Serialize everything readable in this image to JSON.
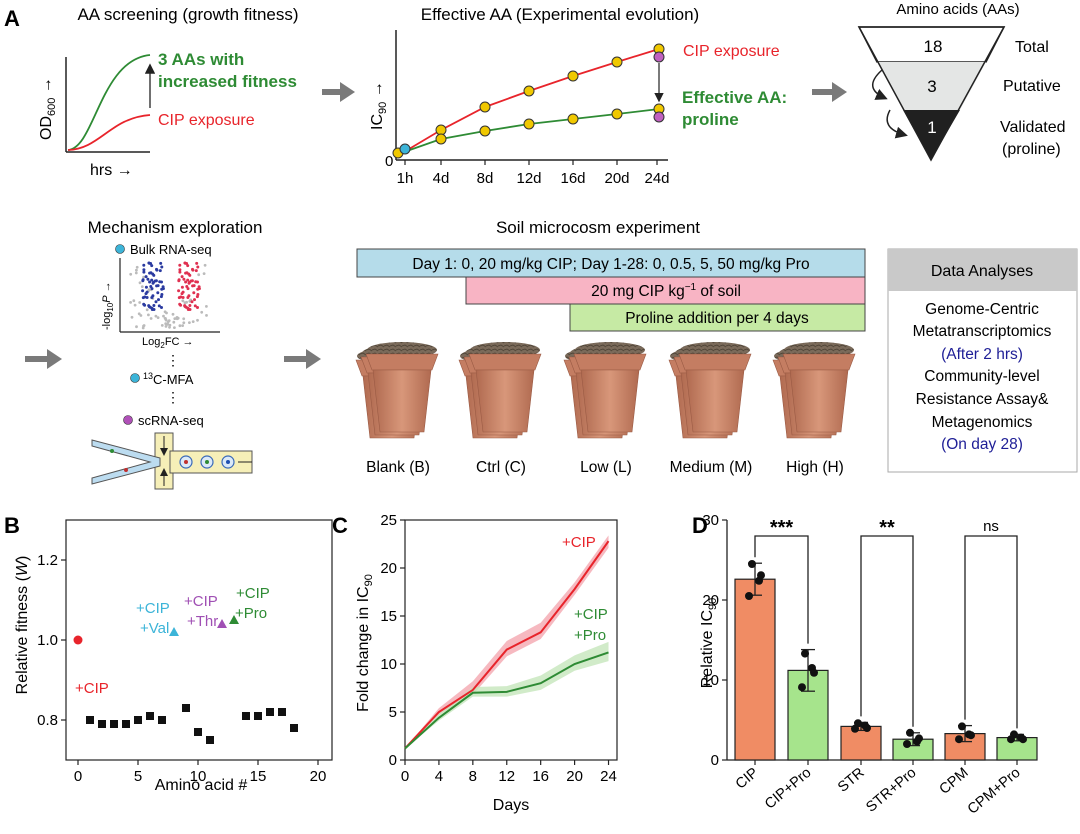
{
  "panel_labels": {
    "a": "A",
    "b": "B",
    "c": "C",
    "d": "D"
  },
  "panelA": {
    "screen_title": "AA screening (growth fitness)",
    "screen_ylabel_base": "OD",
    "screen_ylabel_sub": "600",
    "screen_xlabel": "hrs →",
    "screen_annot_line1": "3 AAs with",
    "screen_annot_line2": "increased fitness",
    "screen_cip_label": "CIP exposure",
    "evo_title": "Effective AA (Experimental evolution)",
    "evo_ylabel_base": "IC",
    "evo_ylabel_sub": "90",
    "evo_zero": "0",
    "evo_ticks": [
      "1h",
      "4d",
      "8d",
      "12d",
      "16d",
      "20d",
      "24d"
    ],
    "evo_cip_label": "CIP exposure",
    "evo_pro_line1": "Effective AA:",
    "evo_pro_line2": "proline",
    "funnel_title": "Amino acids (AAs)",
    "funnel_levels": [
      {
        "value": "18",
        "label": "Total"
      },
      {
        "value": "3",
        "label": "Putative"
      },
      {
        "value": "1",
        "label": "Validated"
      }
    ],
    "funnel_validated_note": "(proline)"
  },
  "mechanism": {
    "title": "Mechanism exploration",
    "bulk": "Bulk RNA-seq",
    "volcano_y_base": "-log",
    "volcano_y_sub": "10",
    "volcano_y_p": "P",
    "volcano_x_base": "Log",
    "volcano_x_sub": "2",
    "volcano_x_rest": "FC →",
    "dots": "⋮",
    "mfa_sup": "13",
    "mfa": "C-MFA",
    "scrna": "scRNA-seq"
  },
  "soil": {
    "title": "Soil microcosm experiment",
    "bar1": "Day 1: 0, 20 mg/kg CIP; Day 1-28: 0, 0.5, 5, 50 mg/kg Pro",
    "bar2_a": "20 mg CIP kg",
    "bar2_sup": "−1",
    "bar2_b": " of soil",
    "bar3": "Proline addition per 4 days",
    "pots": [
      "Blank (B)",
      "Ctrl (C)",
      "Low (L)",
      "Medium (M)",
      "High (H)"
    ]
  },
  "analyses": {
    "title": "Data Analyses",
    "lines": [
      "Genome-Centric",
      "Metatranscriptomics",
      "(After 2 hrs)",
      "Community-level",
      "Resistance Assay&",
      "Metagenomics",
      "(On day 28)"
    ]
  },
  "colors": {
    "red": "#e8242b",
    "green": "#2e8b34",
    "cyan": "#3cb4d8",
    "purple": "#a050b4",
    "orange": "#f08c64",
    "lightgreen": "#a6e48c",
    "blue": "#1e1e96"
  },
  "chart_data": [
    {
      "type": "scatter",
      "title": "",
      "xlabel": "Amino acid #",
      "ylabel": "Relative fitness (W)",
      "xlim": [
        -1,
        20
      ],
      "ylim": [
        0.7,
        1.3
      ],
      "xticks": [
        0,
        5,
        10,
        15,
        20
      ],
      "yticks": [
        0.8,
        1.0,
        1.2
      ],
      "series": [
        {
          "name": "Amino acids",
          "marker": "square",
          "x": [
            1,
            2,
            3,
            4,
            5,
            6,
            7,
            9,
            10,
            11,
            14,
            15,
            16,
            17,
            18
          ],
          "y": [
            0.8,
            0.79,
            0.79,
            0.79,
            0.8,
            0.81,
            0.8,
            0.83,
            0.77,
            0.75,
            0.81,
            0.81,
            0.82,
            0.82,
            0.78
          ]
        },
        {
          "name": "+CIP",
          "marker": "circle",
          "x": [
            0
          ],
          "y": [
            1.0
          ]
        },
        {
          "name": "+CIP +Val",
          "marker": "triangle",
          "x": [
            8
          ],
          "y": [
            1.02
          ]
        },
        {
          "name": "+CIP +Thr",
          "marker": "triangle",
          "x": [
            12
          ],
          "y": [
            1.04
          ]
        },
        {
          "name": "+CIP +Pro",
          "marker": "triangle",
          "x": [
            13
          ],
          "y": [
            1.05
          ]
        }
      ],
      "annotations": [
        "+CIP",
        "+CIP",
        "+Val",
        "+CIP",
        "+Thr",
        "+CIP",
        "+Pro"
      ]
    },
    {
      "type": "line",
      "title": "",
      "xlabel": "Days",
      "ylabel": "Fold change in IC90",
      "xlim": [
        0,
        25
      ],
      "ylim": [
        0,
        25
      ],
      "xticks": [
        0,
        4,
        8,
        12,
        16,
        20,
        24
      ],
      "yticks": [
        0,
        5,
        10,
        15,
        20,
        25
      ],
      "x": [
        0,
        4,
        8,
        12,
        16,
        20,
        24
      ],
      "series": [
        {
          "name": "+CIP",
          "values": [
            1.2,
            5.0,
            7.3,
            11.5,
            13.3,
            17.8,
            22.8
          ],
          "lower": [
            1.2,
            4.7,
            6.8,
            10.8,
            12.6,
            17.2,
            22.1
          ],
          "upper": [
            1.2,
            5.4,
            8.2,
            12.4,
            14.3,
            18.5,
            23.4
          ]
        },
        {
          "name": "+CIP +Pro",
          "values": [
            1.2,
            4.4,
            7.0,
            7.1,
            8.0,
            10.0,
            11.2
          ],
          "lower": [
            1.2,
            4.1,
            6.6,
            6.6,
            7.3,
            9.3,
            10.3
          ],
          "upper": [
            1.2,
            4.8,
            7.6,
            7.7,
            8.8,
            10.9,
            12.3
          ]
        }
      ],
      "legend": [
        "+CIP",
        "+CIP",
        "+Pro"
      ]
    },
    {
      "type": "bar",
      "title": "",
      "xlabel": "",
      "ylabel": "Relative IC90",
      "ylim": [
        0,
        30
      ],
      "yticks": [
        0,
        10,
        20,
        30
      ],
      "categories": [
        "CIP",
        "CIP+Pro",
        "STR",
        "STR+Pro",
        "CPM",
        "CPM+Pro"
      ],
      "values": [
        22.6,
        11.2,
        4.2,
        2.6,
        3.3,
        2.8
      ],
      "errors": [
        2.0,
        2.6,
        0.5,
        0.8,
        1.0,
        0.4
      ],
      "points": [
        [
          24.5,
          22.4,
          20.5,
          23.1
        ],
        [
          13.3,
          11.5,
          9.1,
          10.9
        ],
        [
          4.6,
          4.3,
          3.9,
          4.0
        ],
        [
          3.4,
          2.3,
          2.0,
          2.7
        ],
        [
          4.2,
          3.2,
          2.6,
          3.1
        ],
        [
          3.2,
          2.8,
          2.6,
          2.6
        ]
      ],
      "significance": [
        "***",
        "**",
        "ns"
      ]
    }
  ]
}
